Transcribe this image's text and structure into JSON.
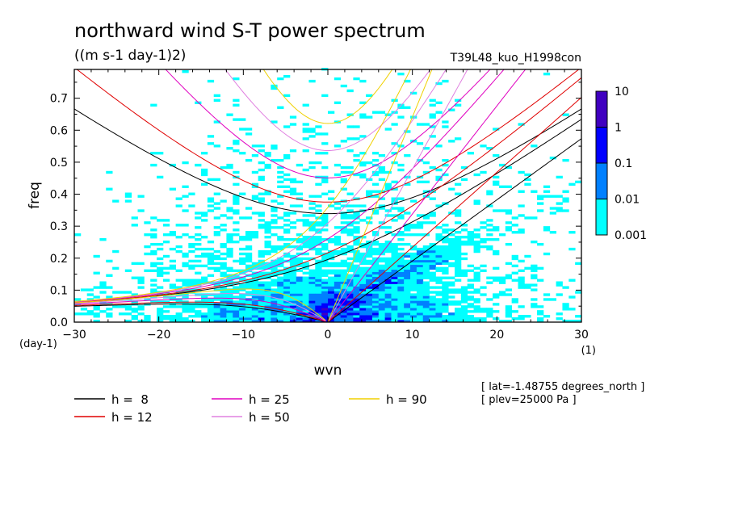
{
  "chart_data": {
    "type": "heatmap",
    "title": "northward wind S-T power spectrum",
    "subtitle": "((m s-1 day-1)2)",
    "dataset": "T39L48_kuo_H1998con",
    "xlabel": "wvn",
    "x_unit": "(1)",
    "ylabel": "freq",
    "y_unit": "(day-1)",
    "xlim": [
      -30,
      30
    ],
    "ylim": [
      0,
      0.79
    ],
    "x_ticks": [
      -30,
      -20,
      -10,
      0,
      10,
      20,
      30
    ],
    "x_tick_labels": [
      "−30",
      "−20",
      "−10",
      "0",
      "10",
      "20",
      "30"
    ],
    "y_ticks": [
      0.0,
      0.1,
      0.2,
      0.3,
      0.4,
      0.5,
      0.6,
      0.7
    ],
    "y_tick_labels": [
      "0.0",
      "0.1",
      "0.2",
      "0.3",
      "0.4",
      "0.5",
      "0.6",
      "0.7"
    ],
    "colorbar": {
      "levels": [
        "0.001",
        "0.01",
        "0.1",
        "1",
        "10"
      ],
      "colors": [
        "#00ffff",
        "#0080ff",
        "#0000ff",
        "#4000c0"
      ]
    },
    "dispersion_curves": [
      {
        "label": "h =  8",
        "h": 8,
        "color": "#000000"
      },
      {
        "label": "h = 12",
        "h": 12,
        "color": "#e00000"
      },
      {
        "label": "h = 25",
        "h": 25,
        "color": "#e000c0"
      },
      {
        "label": "h = 50",
        "h": 50,
        "color": "#e080e0"
      },
      {
        "label": "h = 90",
        "h": 90,
        "color": "#f0d000"
      }
    ],
    "info": [
      "[ lat=-1.48755 degrees_north ]",
      "[ plev=25000 Pa ]"
    ]
  }
}
